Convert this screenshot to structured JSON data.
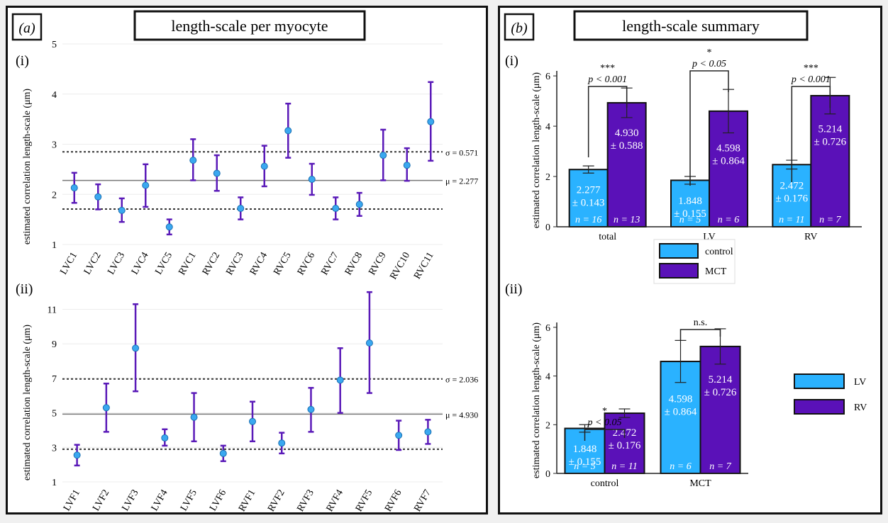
{
  "colors": {
    "error_bar": "#5a1ab8",
    "dot": "#3aa8f0",
    "dot_edge": "#1c6fb0",
    "control": "#2ab2ff",
    "mct": "#5a11b8",
    "lv": "#2ab2ff",
    "rv": "#5a11b8",
    "sig": "#222222"
  },
  "panel_a": {
    "letter": "(a)",
    "title": "length-scale per myocyte",
    "ylabel": "estimated correlation length-scale (μm)"
  },
  "panel_b": {
    "letter": "(b)",
    "title": "length-scale summary",
    "ylabel": "estimated correlation length-scale (μm)"
  },
  "chart_data": [
    {
      "id": "a-i",
      "label": "(i)",
      "type": "scatter",
      "ylim": [
        1,
        5
      ],
      "yticks": [
        1,
        2,
        3,
        4,
        5
      ],
      "categories": [
        "LVC1",
        "LVC2",
        "LVC3",
        "LVC4",
        "LVC5",
        "RVC1",
        "RVC2",
        "RVC3",
        "RVC4",
        "RVC5",
        "RVC6",
        "RVC7",
        "RVC8",
        "RVC9",
        "RVC10",
        "RVC11"
      ],
      "values": [
        2.13,
        1.95,
        1.68,
        2.18,
        1.35,
        2.68,
        2.42,
        1.72,
        2.56,
        3.27,
        2.3,
        1.72,
        1.8,
        2.78,
        2.58,
        3.45
      ],
      "err_low": [
        1.83,
        1.7,
        1.45,
        1.75,
        1.2,
        2.28,
        2.07,
        1.5,
        2.16,
        2.73,
        1.99,
        1.5,
        1.57,
        2.28,
        2.27,
        2.67
      ],
      "err_high": [
        2.43,
        2.2,
        1.92,
        2.6,
        1.5,
        3.1,
        2.78,
        1.94,
        2.97,
        3.81,
        2.61,
        1.94,
        2.03,
        3.29,
        2.92,
        4.24
      ],
      "mean": 2.277,
      "mean_label": "μ = 2.277",
      "sigma_upper": 2.848,
      "sigma_lower": 1.706,
      "sigma_label": "σ = 0.571",
      "grid": true
    },
    {
      "id": "a-ii",
      "label": "(ii)",
      "type": "scatter",
      "ylim": [
        1,
        12.5
      ],
      "yticks": [
        1,
        3,
        5,
        7,
        9,
        11
      ],
      "categories": [
        "LVF1",
        "LVF2",
        "LVF3",
        "LVF4",
        "LVF5",
        "LVF6",
        "RVF1",
        "RVF2",
        "RVF3",
        "RVF4",
        "RVF5",
        "RVF6",
        "RVF7"
      ],
      "values": [
        2.55,
        5.3,
        8.75,
        3.55,
        4.75,
        2.65,
        4.5,
        3.25,
        5.2,
        6.9,
        9.05,
        3.7,
        3.9
      ],
      "err_low": [
        1.95,
        3.9,
        6.25,
        3.1,
        3.35,
        2.2,
        3.35,
        2.65,
        3.9,
        5.0,
        6.15,
        2.85,
        3.2
      ],
      "err_high": [
        3.15,
        6.7,
        11.3,
        4.05,
        6.15,
        3.1,
        5.65,
        3.85,
        6.45,
        8.75,
        12.0,
        4.55,
        4.6
      ],
      "mean": 4.93,
      "mean_label": "μ = 4.930",
      "sigma_upper": 6.966,
      "sigma_lower": 2.894,
      "sigma_label": "σ = 2.036",
      "grid": true
    },
    {
      "id": "b-i",
      "label": "(i)",
      "type": "bar",
      "ylim": [
        0,
        6.2
      ],
      "yticks": [
        0,
        2,
        4,
        6
      ],
      "categories": [
        "total",
        "LV",
        "RV"
      ],
      "series": [
        {
          "name": "control",
          "values": [
            2.277,
            1.848,
            2.472
          ],
          "errors": [
            0.143,
            0.155,
            0.176
          ],
          "val_text": [
            "2.277",
            "1.848",
            "2.472"
          ],
          "err_text": [
            "± 0.143",
            "± 0.155",
            "± 0.176"
          ],
          "n_text": [
            "n = 16",
            "n = 5",
            "n = 11"
          ]
        },
        {
          "name": "MCT",
          "values": [
            4.93,
            4.598,
            5.214
          ],
          "errors": [
            0.588,
            0.864,
            0.726
          ],
          "val_text": [
            "4.930",
            "4.598",
            "5.214"
          ],
          "err_text": [
            "± 0.588",
            "± 0.864",
            "± 0.726"
          ],
          "n_text": [
            "n = 13",
            "n = 6",
            "n = 7"
          ]
        }
      ],
      "significance": [
        {
          "stars": "***",
          "p": "p < 0.001"
        },
        {
          "stars": "*",
          "p": "p < 0.05"
        },
        {
          "stars": "***",
          "p": "p < 0.001"
        }
      ],
      "legend": [
        "control",
        "MCT"
      ],
      "legend_position": "bottom-center"
    },
    {
      "id": "b-ii",
      "label": "(ii)",
      "type": "bar",
      "ylim": [
        0,
        6.2
      ],
      "yticks": [
        0,
        2,
        4,
        6
      ],
      "categories": [
        "control",
        "MCT"
      ],
      "series": [
        {
          "name": "LV",
          "values": [
            1.848,
            4.598
          ],
          "errors": [
            0.155,
            0.864
          ],
          "val_text": [
            "1.848",
            "4.598"
          ],
          "err_text": [
            "± 0.155",
            "± 0.864"
          ],
          "n_text": [
            "n = 5",
            "n = 6"
          ]
        },
        {
          "name": "RV",
          "values": [
            2.472,
            5.214
          ],
          "errors": [
            0.176,
            0.726
          ],
          "val_text": [
            "2.472",
            "5.214"
          ],
          "err_text": [
            "± 0.176",
            "± 0.726"
          ],
          "n_text": [
            "n = 11",
            "n = 7"
          ]
        }
      ],
      "significance": [
        {
          "stars": "*",
          "p": "p < 0.05"
        },
        {
          "stars": "",
          "p": "n.s."
        }
      ],
      "legend": [
        "LV",
        "RV"
      ],
      "legend_position": "right"
    }
  ]
}
